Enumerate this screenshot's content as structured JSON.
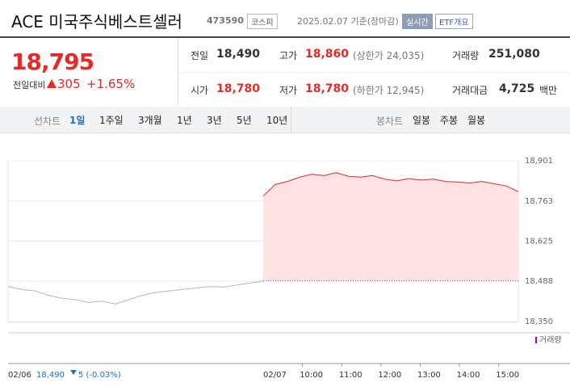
{
  "header": {
    "title": "ACE 미국주식베스트셀러",
    "code": "473590",
    "market": "코스피",
    "date": "2025.02.07 기준(장마감)",
    "realtime": "실시간",
    "etf": "ETF개요"
  },
  "quote": {
    "price": "18,795",
    "change_label": "전일대비",
    "change": "305",
    "change_pct": "+1.65%",
    "stats": [
      {
        "label": "전일",
        "value": "18,490"
      },
      {
        "label": "고가",
        "value": "18,860",
        "note": "(상한가 24,035)"
      },
      {
        "label": "거래량",
        "value": "251,080"
      },
      {
        "label": "시가",
        "value": "18,780"
      },
      {
        "label": "저가",
        "value": "18,780",
        "note": "(하한가 12,945)"
      },
      {
        "label": "거래대금",
        "value": "4,725",
        "unit": "백만"
      }
    ]
  },
  "tabs": {
    "line_label": "선차트",
    "line": [
      "1일",
      "1주일",
      "3개월",
      "1년",
      "3년",
      "5년",
      "10년"
    ],
    "candle_label": "봉차트",
    "candle": [
      "일봉",
      "주봉",
      "월봉"
    ]
  },
  "chart": {
    "type": "line",
    "ylim": [
      18350,
      18901
    ],
    "yticks": [
      {
        "value": 18901,
        "label": "18,901"
      },
      {
        "value": 18763,
        "label": "18,763"
      },
      {
        "value": 18625,
        "label": "18,625"
      },
      {
        "value": 18488,
        "label": "18,488"
      },
      {
        "value": 18350,
        "label": "18,350"
      }
    ],
    "prev_close": 18490,
    "series": [
      {
        "name": "02/06",
        "color": "#b5b5b5",
        "values": [
          18470,
          18460,
          18455,
          18440,
          18430,
          18425,
          18415,
          18420,
          18410,
          18425,
          18440,
          18450,
          18455,
          18460,
          18465,
          18470,
          18468,
          18475,
          18482,
          18488
        ]
      },
      {
        "name": "02/07",
        "color": "#e52a2a",
        "values": [
          18780,
          18820,
          18830,
          18845,
          18855,
          18850,
          18860,
          18848,
          18845,
          18850,
          18838,
          18832,
          18840,
          18835,
          18838,
          18830,
          18828,
          18825,
          18830,
          18822,
          18815,
          18795
        ]
      }
    ],
    "time_ticks": [
      "10:00",
      "11:00",
      "12:00",
      "13:00",
      "14:00",
      "15:00"
    ],
    "volume_label": "거래량",
    "prev_summary": {
      "price": "18,490",
      "change": "5 (-0.03%)"
    }
  }
}
